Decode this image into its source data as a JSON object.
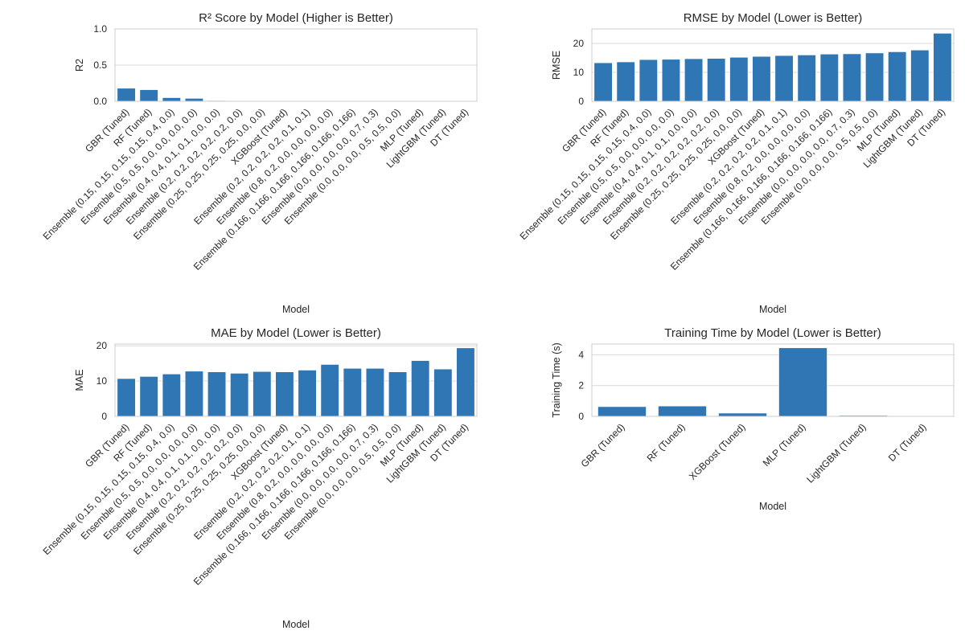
{
  "chart_data": [
    {
      "type": "bar",
      "title": "R² Score by Model (Higher is Better)",
      "xlabel": "Model",
      "ylabel": "R2",
      "ylim": [
        0,
        1.0
      ],
      "yticks": [
        0,
        0.5,
        1
      ],
      "ytick_labels": [
        "0.0",
        "0.5",
        "1.0"
      ],
      "grid": true,
      "color": "#2f77b4",
      "categories": [
        "GBR (Tuned)",
        "RF (Tuned)",
        "Ensemble (0.15, 0.15, 0.15, 0.15, 0.4, 0.0)",
        "Ensemble (0.5, 0.5, 0.0, 0.0, 0.0, 0.0)",
        "Ensemble (0.4, 0.4, 0.1, 0.1, 0.0, 0.0)",
        "Ensemble (0.2, 0.2, 0.2, 0.2, 0.2, 0.0)",
        "Ensemble (0.25, 0.25, 0.25, 0.25, 0.0, 0.0)",
        "XGBoost (Tuned)",
        "Ensemble (0.2, 0.2, 0.2, 0.2, 0.1, 0.1)",
        "Ensemble (0.8, 0.2, 0.0, 0.0, 0.0, 0.0)",
        "Ensemble (0.166, 0.166, 0.166, 0.166, 0.166, 0.166)",
        "Ensemble (0.0, 0.0, 0.0, 0.0, 0.7, 0.3)",
        "Ensemble (0.0, 0.0, 0.0, 0.5, 0.5, 0.0)",
        "MLP (Tuned)",
        "LightGBM (Tuned)",
        "DT (Tuned)"
      ],
      "values": [
        0.18,
        0.16,
        0.05,
        0.04,
        0.01,
        0.005,
        0.003,
        0.002,
        0.002,
        0.001,
        0.001,
        0.001,
        0.001,
        0.0,
        0.0,
        0.0
      ]
    },
    {
      "type": "bar",
      "title": "RMSE by Model (Lower is Better)",
      "xlabel": "Model",
      "ylabel": "RMSE",
      "ylim": [
        0,
        25
      ],
      "yticks": [
        0,
        10,
        20
      ],
      "ytick_labels": [
        "0",
        "10",
        "20"
      ],
      "grid": true,
      "color": "#2f77b4",
      "categories": [
        "GBR (Tuned)",
        "RF (Tuned)",
        "Ensemble (0.15, 0.15, 0.15, 0.15, 0.4, 0.0)",
        "Ensemble (0.5, 0.5, 0.0, 0.0, 0.0, 0.0)",
        "Ensemble (0.4, 0.4, 0.1, 0.1, 0.0, 0.0)",
        "Ensemble (0.2, 0.2, 0.2, 0.2, 0.2, 0.0)",
        "Ensemble (0.25, 0.25, 0.25, 0.25, 0.0, 0.0)",
        "XGBoost (Tuned)",
        "Ensemble (0.2, 0.2, 0.2, 0.2, 0.1, 0.1)",
        "Ensemble (0.8, 0.2, 0.0, 0.0, 0.0, 0.0)",
        "Ensemble (0.166, 0.166, 0.166, 0.166, 0.166, 0.166)",
        "Ensemble (0.0, 0.0, 0.0, 0.0, 0.7, 0.3)",
        "Ensemble (0.0, 0.0, 0.0, 0.5, 0.5, 0.0)",
        "MLP (Tuned)",
        "LightGBM (Tuned)",
        "DT (Tuned)"
      ],
      "values": [
        13.3,
        13.6,
        14.4,
        14.5,
        14.7,
        14.8,
        15.2,
        15.5,
        15.8,
        16.0,
        16.3,
        16.4,
        16.7,
        17.1,
        17.7,
        23.5
      ]
    },
    {
      "type": "bar",
      "title": "MAE by Model (Lower is Better)",
      "xlabel": "Model",
      "ylabel": "MAE",
      "ylim": [
        0,
        20.5
      ],
      "yticks": [
        0,
        10,
        20
      ],
      "ytick_labels": [
        "0",
        "10",
        "20"
      ],
      "grid": true,
      "color": "#2f77b4",
      "categories": [
        "GBR (Tuned)",
        "RF (Tuned)",
        "Ensemble (0.15, 0.15, 0.15, 0.15, 0.4, 0.0)",
        "Ensemble (0.5, 0.5, 0.0, 0.0, 0.0, 0.0)",
        "Ensemble (0.4, 0.4, 0.1, 0.1, 0.0, 0.0)",
        "Ensemble (0.2, 0.2, 0.2, 0.2, 0.2, 0.0)",
        "Ensemble (0.25, 0.25, 0.25, 0.25, 0.0, 0.0)",
        "XGBoost (Tuned)",
        "Ensemble (0.2, 0.2, 0.2, 0.2, 0.1, 0.1)",
        "Ensemble (0.8, 0.2, 0.0, 0.0, 0.0, 0.0)",
        "Ensemble (0.166, 0.166, 0.166, 0.166, 0.166, 0.166)",
        "Ensemble (0.0, 0.0, 0.0, 0.0, 0.7, 0.3)",
        "Ensemble (0.0, 0.0, 0.0, 0.5, 0.5, 0.0)",
        "MLP (Tuned)",
        "LightGBM (Tuned)",
        "DT (Tuned)"
      ],
      "values": [
        10.7,
        11.3,
        12.0,
        12.8,
        12.6,
        12.2,
        12.7,
        12.6,
        13.1,
        14.7,
        13.6,
        13.6,
        12.6,
        15.8,
        13.4,
        19.4
      ]
    },
    {
      "type": "bar",
      "title": "Training Time by Model (Lower is Better)",
      "xlabel": "Model",
      "ylabel": "Training Time (s)",
      "ylim": [
        0,
        4.7
      ],
      "yticks": [
        0,
        2,
        4
      ],
      "ytick_labels": [
        "0",
        "2",
        "4"
      ],
      "grid": true,
      "color": "#2f77b4",
      "categories": [
        "GBR (Tuned)",
        "RF (Tuned)",
        "XGBoost (Tuned)",
        "MLP (Tuned)",
        "LightGBM (Tuned)",
        "DT (Tuned)"
      ],
      "values": [
        0.63,
        0.67,
        0.21,
        4.45,
        0.06,
        0.01
      ]
    }
  ]
}
